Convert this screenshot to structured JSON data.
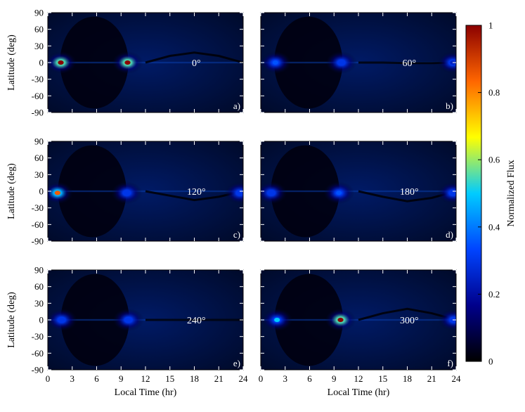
{
  "chart_data": {
    "type": "heatmap",
    "xlabel": "Local Time (hr)",
    "ylabel": "Latitude (deg)",
    "colorbar_label": "Normalized Flux",
    "xlim": [
      0,
      24
    ],
    "ylim": [
      -90,
      90
    ],
    "zlim": [
      0,
      1
    ],
    "x_ticks": [
      0,
      3,
      6,
      9,
      12,
      15,
      18,
      21,
      24
    ],
    "y_ticks": [
      -90,
      -60,
      -30,
      0,
      30,
      60,
      90
    ],
    "colorbar_ticks": [
      0,
      0.2,
      0.4,
      0.6,
      0.8,
      1
    ],
    "colormap": [
      "#000000",
      "#00008b",
      "#0044ff",
      "#00ccff",
      "#ffff00",
      "#ff6600",
      "#8b0000"
    ],
    "panels": [
      {
        "tag": "a)",
        "label": "0°",
        "hotspots": [
          {
            "x": 1.6,
            "y": 0,
            "z": 1.0
          },
          {
            "x": 9.8,
            "y": 0,
            "z": 1.0
          }
        ],
        "shadow_band": [
          {
            "x": 12,
            "y": 0
          },
          {
            "x": 15,
            "y": 12
          },
          {
            "x": 18,
            "y": 18
          },
          {
            "x": 21,
            "y": 12
          },
          {
            "x": 24,
            "y": 0
          }
        ]
      },
      {
        "tag": "b)",
        "label": "60°",
        "hotspots": [
          {
            "x": 1.8,
            "y": 0,
            "z": 0.35
          },
          {
            "x": 9.9,
            "y": 0,
            "z": 0.3
          },
          {
            "x": 23.6,
            "y": 0,
            "z": 0.25
          }
        ],
        "shadow_band": [
          {
            "x": 12,
            "y": 0
          },
          {
            "x": 15,
            "y": 0
          },
          {
            "x": 18,
            "y": -1
          },
          {
            "x": 21,
            "y": -1
          },
          {
            "x": 24,
            "y": 0
          }
        ]
      },
      {
        "tag": "c)",
        "label": "120°",
        "hotspots": [
          {
            "x": 1.2,
            "y": -3,
            "z": 0.85
          },
          {
            "x": 9.7,
            "y": -3,
            "z": 0.3
          },
          {
            "x": 23.6,
            "y": -3,
            "z": 0.3
          }
        ],
        "shadow_band": [
          {
            "x": 12,
            "y": 0
          },
          {
            "x": 15,
            "y": -8
          },
          {
            "x": 18,
            "y": -16
          },
          {
            "x": 21,
            "y": -10
          },
          {
            "x": 24,
            "y": 0
          }
        ]
      },
      {
        "tag": "d)",
        "label": "180°",
        "hotspots": [
          {
            "x": 1.3,
            "y": -3,
            "z": 0.3
          },
          {
            "x": 9.6,
            "y": -3,
            "z": 0.35
          },
          {
            "x": 23.6,
            "y": -3,
            "z": 0.3
          }
        ],
        "shadow_band": [
          {
            "x": 12,
            "y": 0
          },
          {
            "x": 15,
            "y": -10
          },
          {
            "x": 18,
            "y": -18
          },
          {
            "x": 21,
            "y": -12
          },
          {
            "x": 24,
            "y": 0
          }
        ]
      },
      {
        "tag": "e)",
        "label": "240°",
        "hotspots": [
          {
            "x": 1.7,
            "y": 0,
            "z": 0.3
          },
          {
            "x": 9.9,
            "y": 0,
            "z": 0.3
          }
        ],
        "shadow_band": [
          {
            "x": 12,
            "y": 0
          },
          {
            "x": 15,
            "y": 0
          },
          {
            "x": 18,
            "y": 0
          },
          {
            "x": 21,
            "y": 0
          },
          {
            "x": 24,
            "y": 0
          }
        ]
      },
      {
        "tag": "f)",
        "label": "300°",
        "hotspots": [
          {
            "x": 2.0,
            "y": 0,
            "z": 0.5
          },
          {
            "x": 9.8,
            "y": 0,
            "z": 1.0
          },
          {
            "x": 23.7,
            "y": 0,
            "z": 0.3
          }
        ],
        "shadow_band": [
          {
            "x": 12,
            "y": 0
          },
          {
            "x": 15,
            "y": 12
          },
          {
            "x": 18,
            "y": 20
          },
          {
            "x": 21,
            "y": 12
          },
          {
            "x": 24,
            "y": 0
          }
        ]
      }
    ]
  }
}
